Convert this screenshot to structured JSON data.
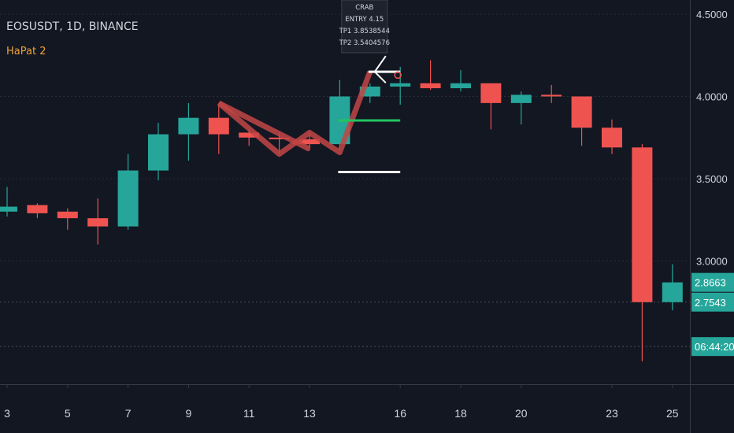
{
  "header": {
    "symbol_line": "EOSUSDT, 1D, BINANCE",
    "indicator": "HaPat 2"
  },
  "colors": {
    "background": "#131722",
    "up": "#26a69a",
    "down": "#ef5350",
    "grid": "#2a2e39",
    "text": "#d1d4dc",
    "pattern": "#c24545",
    "tp_line": "#22c55e",
    "indicator": "#f0a23b",
    "axis_line": "#363a45"
  },
  "annotation": {
    "lines": [
      "CRAB",
      "ENTRY 4.15",
      "TP1 3.8538544",
      "TP2 3.5404576"
    ]
  },
  "price_labels": [
    {
      "text": "2.8663",
      "kind": "close"
    },
    {
      "text": "2.7543",
      "kind": "level"
    },
    {
      "text": "06:44:20",
      "kind": "countdown"
    }
  ],
  "chart_data": {
    "type": "candlestick",
    "title": "EOSUSDT, 1D, BINANCE",
    "y_ticks": [
      "4.5000",
      "4.0000",
      "3.5000",
      "3.0000"
    ],
    "y_tick_values": [
      4.5,
      4.0,
      3.5,
      3.0
    ],
    "ylim": [
      2.27,
      4.58
    ],
    "x_ticks": [
      {
        "label": "3",
        "day": 3
      },
      {
        "label": "5",
        "day": 5
      },
      {
        "label": "7",
        "day": 7
      },
      {
        "label": "9",
        "day": 9
      },
      {
        "label": "11",
        "day": 11
      },
      {
        "label": "13",
        "day": 13
      },
      {
        "label": "16",
        "day": 16
      },
      {
        "label": "18",
        "day": 18
      },
      {
        "label": "20",
        "day": 20
      },
      {
        "label": "23",
        "day": 23
      },
      {
        "label": "25",
        "day": 25
      }
    ],
    "candles": [
      {
        "day": 3,
        "open": 3.3,
        "high": 3.45,
        "low": 3.27,
        "close": 3.33
      },
      {
        "day": 4,
        "open": 3.34,
        "high": 3.35,
        "low": 3.26,
        "close": 3.29
      },
      {
        "day": 5,
        "open": 3.3,
        "high": 3.32,
        "low": 3.19,
        "close": 3.26
      },
      {
        "day": 6,
        "open": 3.26,
        "high": 3.38,
        "low": 3.1,
        "close": 3.21
      },
      {
        "day": 7,
        "open": 3.21,
        "high": 3.65,
        "low": 3.19,
        "close": 3.55
      },
      {
        "day": 8,
        "open": 3.55,
        "high": 3.84,
        "low": 3.49,
        "close": 3.77
      },
      {
        "day": 9,
        "open": 3.77,
        "high": 3.96,
        "low": 3.61,
        "close": 3.87
      },
      {
        "day": 10,
        "open": 3.87,
        "high": 3.96,
        "low": 3.65,
        "close": 3.77
      },
      {
        "day": 11,
        "open": 3.78,
        "high": 3.8,
        "low": 3.7,
        "close": 3.75
      },
      {
        "day": 12,
        "open": 3.75,
        "high": 3.78,
        "low": 3.65,
        "close": 3.74
      },
      {
        "day": 13,
        "open": 3.74,
        "high": 3.78,
        "low": 3.67,
        "close": 3.71
      },
      {
        "day": 14,
        "open": 3.71,
        "high": 4.1,
        "low": 3.67,
        "close": 4.0
      },
      {
        "day": 15,
        "open": 4.0,
        "high": 4.08,
        "low": 3.96,
        "close": 4.06
      },
      {
        "day": 16,
        "open": 4.06,
        "high": 4.18,
        "low": 3.95,
        "close": 4.08
      },
      {
        "day": 17,
        "open": 4.08,
        "high": 4.22,
        "low": 4.04,
        "close": 4.05
      },
      {
        "day": 18,
        "open": 4.05,
        "high": 4.16,
        "low": 4.03,
        "close": 4.08
      },
      {
        "day": 19,
        "open": 4.08,
        "high": 4.08,
        "low": 3.8,
        "close": 3.96
      },
      {
        "day": 20,
        "open": 3.96,
        "high": 4.03,
        "low": 3.83,
        "close": 4.01
      },
      {
        "day": 21,
        "open": 4.01,
        "high": 4.07,
        "low": 3.96,
        "close": 4.0
      },
      {
        "day": 22,
        "open": 4.0,
        "high": 4.0,
        "low": 3.7,
        "close": 3.81
      },
      {
        "day": 23,
        "open": 3.81,
        "high": 3.86,
        "low": 3.65,
        "close": 3.69
      },
      {
        "day": 24,
        "open": 3.69,
        "high": 3.71,
        "low": 2.39,
        "close": 2.75
      },
      {
        "day": 25,
        "open": 2.75,
        "high": 2.98,
        "low": 2.7,
        "close": 2.87
      }
    ],
    "pattern": {
      "name": "CRAB",
      "points": [
        {
          "day": 10,
          "price": 3.96
        },
        {
          "day": 12,
          "price": 3.65
        },
        {
          "day": 13,
          "price": 3.78
        },
        {
          "day": 14,
          "price": 3.66
        },
        {
          "day": 15,
          "price": 4.15
        }
      ],
      "extra_segment": [
        {
          "day": 10,
          "price": 3.96
        },
        {
          "day": 13,
          "price": 3.68
        }
      ]
    },
    "levels": [
      {
        "name": "entry",
        "price": 4.15,
        "from_day": 15,
        "to_day": 16,
        "color": "#ffffff"
      },
      {
        "name": "tp1",
        "price": 3.8538544,
        "from_day": 14,
        "to_day": 16,
        "color": "#22c55e"
      },
      {
        "name": "tp2",
        "price": 3.5404576,
        "from_day": 14,
        "to_day": 16,
        "color": "#ffffff"
      }
    ],
    "horizontal_dotted": [
      2.75,
      2.48
    ]
  }
}
